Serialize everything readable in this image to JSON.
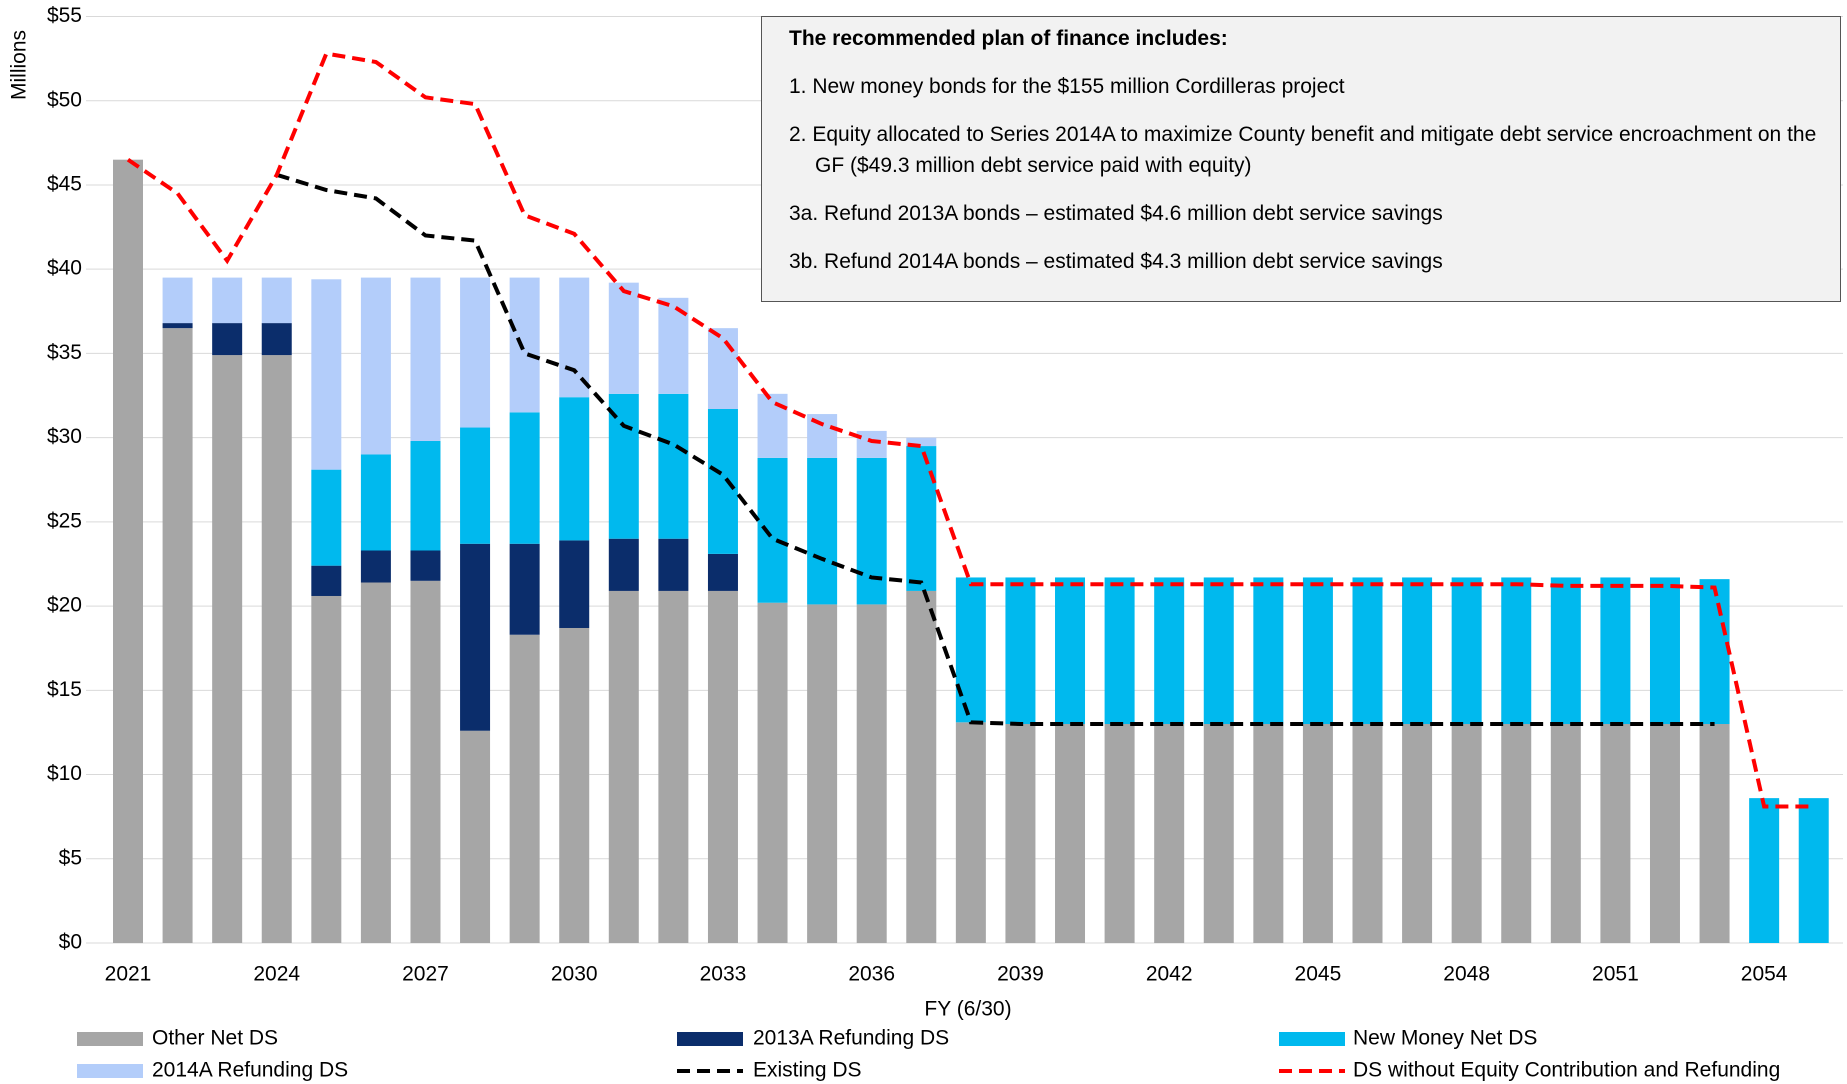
{
  "chart_data": {
    "type": "bar",
    "stacked": true,
    "ylabel": "Millions",
    "xlabel": "FY (6/30)",
    "categories": [
      "2021",
      null,
      null,
      "2024",
      null,
      null,
      "2027",
      null,
      null,
      "2030",
      null,
      null,
      "2033",
      null,
      null,
      "2036",
      null,
      null,
      "2039",
      null,
      null,
      "2042",
      null,
      null,
      "2045",
      null,
      null,
      "2048",
      null,
      null,
      "2051",
      null,
      null,
      "2054",
      null
    ],
    "ylim": [
      0,
      55
    ],
    "yticks": [
      {
        "value": 0,
        "label": "$0"
      },
      {
        "value": 5,
        "label": "$5"
      },
      {
        "value": 10,
        "label": "$10"
      },
      {
        "value": 15,
        "label": "$15"
      },
      {
        "value": 20,
        "label": "$20"
      },
      {
        "value": 25,
        "label": "$25"
      },
      {
        "value": 30,
        "label": "$30"
      },
      {
        "value": 35,
        "label": "$35"
      },
      {
        "value": 40,
        "label": "$40"
      },
      {
        "value": 45,
        "label": "$45"
      },
      {
        "value": 50,
        "label": "$50"
      },
      {
        "value": 55,
        "label": "$55"
      }
    ],
    "grid": true,
    "legend": "bottom",
    "series": [
      {
        "name": "Other Net DS",
        "type": "bar",
        "color": "#a6a6a6",
        "values": [
          46.5,
          36.5,
          34.9,
          34.9,
          20.6,
          21.4,
          21.5,
          12.6,
          18.3,
          18.7,
          20.9,
          20.9,
          20.9,
          20.2,
          20.1,
          20.1,
          20.9,
          13.1,
          13.0,
          13.0,
          13.0,
          13.0,
          13.0,
          13.0,
          13.0,
          13.0,
          13.0,
          13.0,
          13.0,
          13.0,
          13.0,
          13.0,
          13.0,
          0,
          0
        ]
      },
      {
        "name": "2013A Refunding DS",
        "type": "bar",
        "color": "#0b2d6b",
        "values": [
          0,
          0.3,
          1.9,
          1.9,
          1.8,
          1.9,
          1.8,
          11.1,
          5.4,
          5.2,
          3.1,
          3.1,
          2.2,
          0,
          0,
          0,
          0,
          0,
          0,
          0,
          0,
          0,
          0,
          0,
          0,
          0,
          0,
          0,
          0,
          0,
          0,
          0,
          0,
          0,
          0
        ]
      },
      {
        "name": "New Money Net DS",
        "type": "bar",
        "color": "#00b9ee",
        "values": [
          0,
          0,
          0,
          0,
          5.7,
          5.7,
          6.5,
          6.9,
          7.8,
          8.5,
          8.6,
          8.6,
          8.6,
          8.6,
          8.7,
          8.7,
          8.6,
          8.6,
          8.7,
          8.7,
          8.7,
          8.7,
          8.7,
          8.7,
          8.7,
          8.7,
          8.7,
          8.7,
          8.7,
          8.7,
          8.7,
          8.7,
          8.6,
          8.6,
          8.6
        ]
      },
      {
        "name": "2014A Refunding DS",
        "type": "bar",
        "color": "#b3cdfa",
        "values": [
          0,
          2.7,
          2.7,
          2.7,
          11.3,
          10.5,
          9.7,
          8.9,
          8.0,
          7.1,
          6.6,
          5.7,
          4.8,
          3.8,
          2.6,
          1.6,
          0.5,
          0,
          0,
          0,
          0,
          0,
          0,
          0,
          0,
          0,
          0,
          0,
          0,
          0,
          0,
          0,
          0,
          0,
          0
        ]
      },
      {
        "name": "Existing DS",
        "type": "line",
        "color": "#000000",
        "values": [
          null,
          null,
          null,
          45.6,
          44.7,
          44.2,
          42.0,
          41.7,
          35.0,
          34.0,
          30.7,
          29.6,
          27.8,
          24.0,
          22.8,
          21.7,
          21.4,
          13.1,
          13.0,
          13.0,
          13.0,
          13.0,
          13.0,
          13.0,
          13.0,
          13.0,
          13.0,
          13.0,
          13.0,
          13.0,
          13.0,
          13.0,
          13.0,
          null,
          null
        ]
      },
      {
        "name": "DS without Equity Contribution and Refunding",
        "type": "line",
        "color": "#ff0000",
        "values": [
          46.5,
          44.5,
          40.5,
          45.6,
          52.8,
          52.3,
          50.2,
          49.8,
          43.2,
          42.1,
          38.7,
          37.8,
          35.9,
          32.1,
          30.8,
          29.8,
          29.5,
          21.3,
          21.3,
          21.3,
          21.3,
          21.3,
          21.3,
          21.3,
          21.3,
          21.3,
          21.3,
          21.3,
          21.3,
          21.2,
          21.2,
          21.2,
          21.1,
          8.1,
          8.1
        ]
      }
    ],
    "annotation": {
      "title": "The recommended plan of finance includes:",
      "items": [
        "1. New money bonds for the $155 million Cordilleras project",
        "2. Equity allocated to Series 2014A to maximize County benefit and mitigate debt service encroachment on the GF ($49.3 million debt service paid with equity)",
        "3a. Refund 2013A bonds – estimated $4.6 million debt service savings",
        "3b. Refund 2014A bonds – estimated $4.3 million debt service savings"
      ]
    }
  }
}
